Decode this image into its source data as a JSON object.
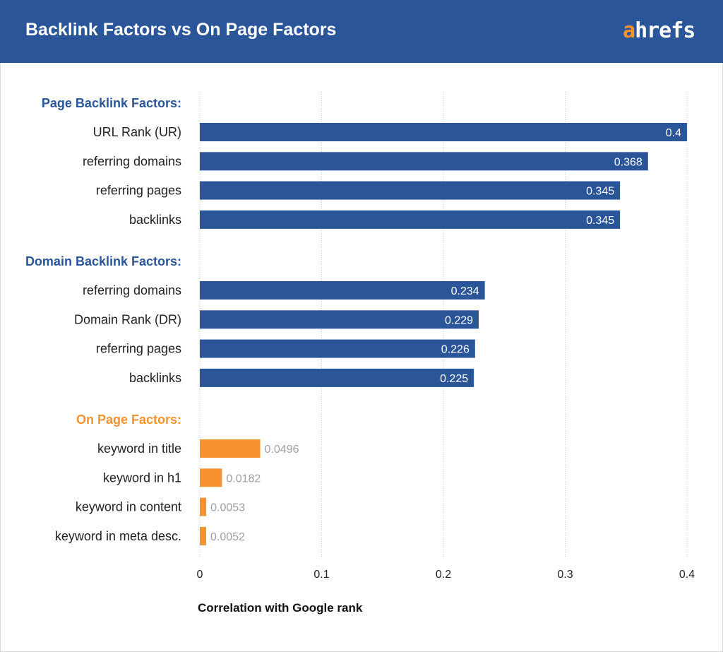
{
  "header": {
    "title": "Backlink Factors vs On Page Factors",
    "logo": "ahrefs"
  },
  "colors": {
    "header": "#2a5699",
    "backlink": "#2a5699",
    "onpage": "#f7922e",
    "onpage_heading": "#f7922e",
    "grid": "#c8c8c8"
  },
  "chart_data": {
    "type": "bar",
    "orientation": "horizontal",
    "xlabel": "Correlation with Google rank",
    "xlim": [
      0,
      0.4
    ],
    "xticks": [
      "0",
      "0.1",
      "0.2",
      "0.3",
      "0.4"
    ],
    "grid": true,
    "groups": [
      {
        "name": "Page Backlink Factors:",
        "color": "#2a5699",
        "categories": [
          "URL Rank (UR)",
          "referring domains",
          "referring pages",
          "backlinks"
        ],
        "values": [
          0.4,
          0.368,
          0.345,
          0.345
        ],
        "labels": [
          "0.4",
          "0.368",
          "0.345",
          "0.345"
        ]
      },
      {
        "name": "Domain Backlink Factors:",
        "color": "#2a5699",
        "categories": [
          "referring domains",
          "Domain Rank (DR)",
          "referring pages",
          "backlinks"
        ],
        "values": [
          0.234,
          0.229,
          0.226,
          0.225
        ],
        "labels": [
          "0.234",
          "0.229",
          "0.226",
          "0.225"
        ]
      },
      {
        "name": "On Page Factors:",
        "color": "#f7922e",
        "categories": [
          "keyword in title",
          "keyword in h1",
          "keyword in content",
          "keyword in meta desc."
        ],
        "values": [
          0.0496,
          0.0182,
          0.0053,
          0.0052
        ],
        "labels": [
          "0.0496",
          "0.0182",
          "0.0053",
          "0.0052"
        ]
      }
    ]
  }
}
